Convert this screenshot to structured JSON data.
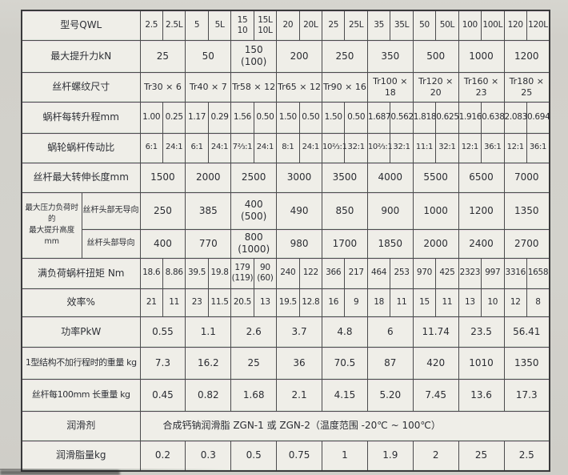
{
  "colors": {
    "page_bg": "#d2d1cb",
    "cell_bg": "#efeee8",
    "border": "#4b4b4d",
    "text": "#2b2d33"
  },
  "table": {
    "rows": [
      {
        "id": "model",
        "label": "型号QWL",
        "cell_span": 1,
        "cells": [
          "2.5",
          "2.5L",
          "5",
          "5L",
          "15\n10",
          "15L\n10L",
          "20",
          "20L",
          "25",
          "25L",
          "35",
          "35L",
          "50",
          "50L",
          "100",
          "100L",
          "120",
          "120L"
        ]
      },
      {
        "id": "max-lift-force",
        "label": "最大提升力kN",
        "cell_span": 2,
        "cells": [
          "25",
          "50",
          "150\n(100)",
          "200",
          "250",
          "350",
          "500",
          "1000",
          "1200"
        ]
      },
      {
        "id": "screw-thread-size",
        "label": "丝杆螺纹尺寸",
        "cell_span": 2,
        "cells": [
          "Tr30 × 6",
          "Tr40 × 7",
          "Tr58 × 12",
          "Tr65 × 12",
          "Tr90 × 16",
          "Tr100 × 18",
          "Tr120 × 20",
          "Tr160 × 23",
          "Tr180 × 25"
        ]
      },
      {
        "id": "lift-per-rev",
        "label": "蜗杆每转升程mm",
        "cell_span": 1,
        "cells": [
          "1.00",
          "0.25",
          "1.17",
          "0.29",
          "1.56",
          "0.50",
          "1.50",
          "0.50",
          "1.50",
          "0.50",
          "1.687",
          "0.562",
          "1.818",
          "0.625",
          "1.916",
          "0.638",
          "2.083",
          "0.694"
        ]
      },
      {
        "id": "gear-ratio",
        "label": "蜗轮蜗杆传动比",
        "cell_span": 1,
        "cells": [
          "6:1",
          "24:1",
          "6:1",
          "24:1",
          "7⅔:1",
          "24:1",
          "8:1",
          "24:1",
          "10⅔:1",
          "32:1",
          "10⅔:1",
          "32:1",
          "11:1",
          "32:1",
          "12:1",
          "36:1",
          "12:1",
          "36:1"
        ]
      },
      {
        "id": "max-screw-length",
        "label": "丝杆最大转伸长度mm",
        "cell_span": 2,
        "cells": [
          "1500",
          "2000",
          "2500",
          "3000",
          "3500",
          "4000",
          "5500",
          "6500",
          "7000"
        ]
      },
      {
        "id": "max-lift-height-unguided",
        "group": {
          "label": "最大压力负荷时的\n最大提升高度mm"
        },
        "label": "丝杆头部无导向",
        "cell_span": 2,
        "cells": [
          "250",
          "385",
          "400\n(500)",
          "490",
          "850",
          "900",
          "1000",
          "1200",
          "1350"
        ]
      },
      {
        "id": "max-lift-height-guided",
        "sub": true,
        "label": "丝杆头部导向",
        "cell_span": 2,
        "cells": [
          "400",
          "770",
          "800\n(1000)",
          "980",
          "1700",
          "1850",
          "2000",
          "2400",
          "2700"
        ]
      },
      {
        "id": "full-load-torque",
        "label": "满负荷蜗杆扭矩 Nm",
        "cell_span": 1,
        "cells": [
          "18.6",
          "8.86",
          "39.5",
          "19.8",
          "179\n(119)",
          "90\n(60)",
          "240",
          "122",
          "366",
          "217",
          "464",
          "253",
          "970",
          "425",
          "2323",
          "997",
          "3316",
          "1658"
        ]
      },
      {
        "id": "efficiency",
        "label": "效率%",
        "cell_span": 1,
        "cells": [
          "21",
          "11",
          "23",
          "11.5",
          "20.5",
          "13",
          "19.5",
          "12.8",
          "16",
          "9",
          "18",
          "11",
          "15",
          "11",
          "13",
          "10",
          "12",
          "8"
        ]
      },
      {
        "id": "power",
        "label": "功率PkW",
        "cell_span": 2,
        "cells": [
          "0.55",
          "1.1",
          "2.6",
          "3.7",
          "4.8",
          "6",
          "11.74",
          "23.5",
          "56.41"
        ]
      },
      {
        "id": "weight-type1",
        "label": "1型结构不加行程时的重量 kg",
        "cell_span": 2,
        "cells": [
          "7.3",
          "16.2",
          "25",
          "36",
          "70.5",
          "87",
          "420",
          "1010",
          "1350"
        ]
      },
      {
        "id": "screw-weight-per-100mm",
        "label": "丝杆每100mm 长重量 kg",
        "cell_span": 2,
        "cells": [
          "0.45",
          "0.82",
          "1.68",
          "2.1",
          "4.15",
          "5.20",
          "7.45",
          "13.6",
          "17.3"
        ]
      },
      {
        "id": "lubricant",
        "label": "润滑剂",
        "cell_span": 18,
        "cells": [
          "合成钙钠润滑脂 ZGN-1 或 ZGN-2（温度范围 -20℃ ~ 100℃）"
        ]
      },
      {
        "id": "grease-amount",
        "label": "润滑脂量kg",
        "cell_span": 2,
        "cells": [
          "0.2",
          "0.3",
          "0.5",
          "0.75",
          "1",
          "1.9",
          "2",
          "25",
          "2.5"
        ]
      }
    ]
  }
}
